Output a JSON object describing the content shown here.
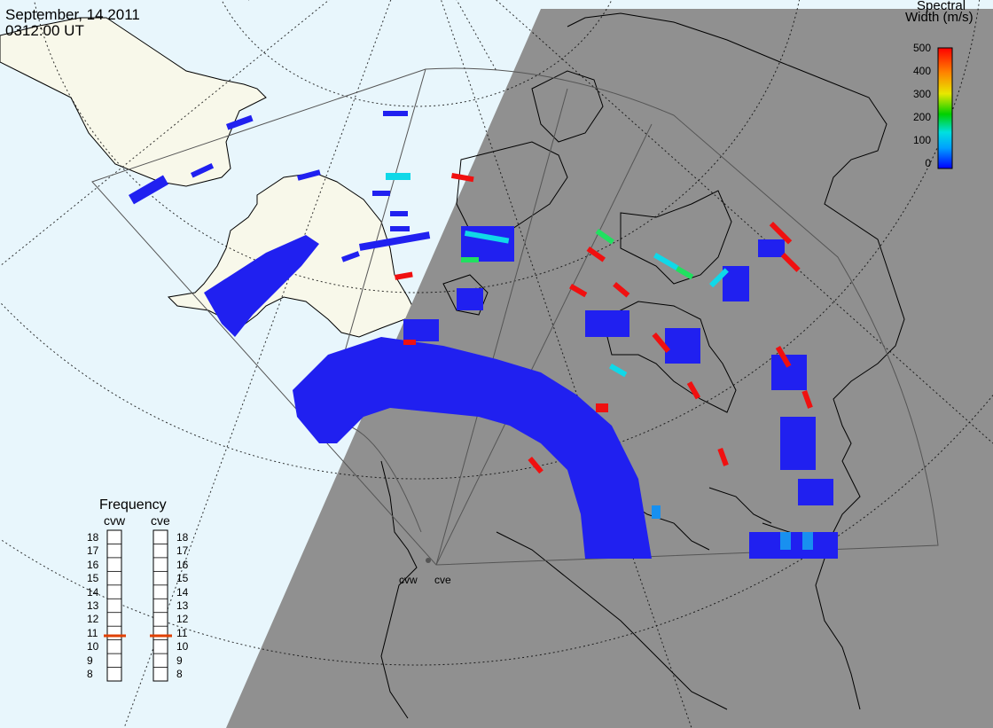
{
  "header": {
    "date": "September, 14 2011",
    "time": "0312:00 UT"
  },
  "colorbar": {
    "title_line1": "Spectral",
    "title_line2": "Width (m/s)",
    "ticks": [
      "500",
      "400",
      "300",
      "200",
      "100",
      "0"
    ],
    "range": [
      0,
      500
    ],
    "stops": [
      "#0000ff",
      "#00a0ff",
      "#00e0e0",
      "#00d000",
      "#e8e800",
      "#ff8000",
      "#ff0000"
    ]
  },
  "frequency": {
    "title": "Frequency",
    "radars": [
      {
        "name": "cvw",
        "value": 10.8
      },
      {
        "name": "cve",
        "value": 10.8
      }
    ],
    "ticks": [
      "18",
      "17",
      "16",
      "15",
      "14",
      "13",
      "12",
      "11",
      "10",
      "9",
      "8"
    ],
    "range": [
      8,
      18
    ]
  },
  "radar_sites": [
    {
      "name": "cvw"
    },
    {
      "name": "cve"
    }
  ],
  "colors": {
    "ocean": "#e8f6fc",
    "land_day": "#f8f8ea",
    "night": "#909090",
    "scatter_low": "#2020f0",
    "scatter_mid": "#1890f0",
    "scatter_cyan": "#10d8e8",
    "scatter_green": "#20e060",
    "scatter_red": "#f01010"
  }
}
